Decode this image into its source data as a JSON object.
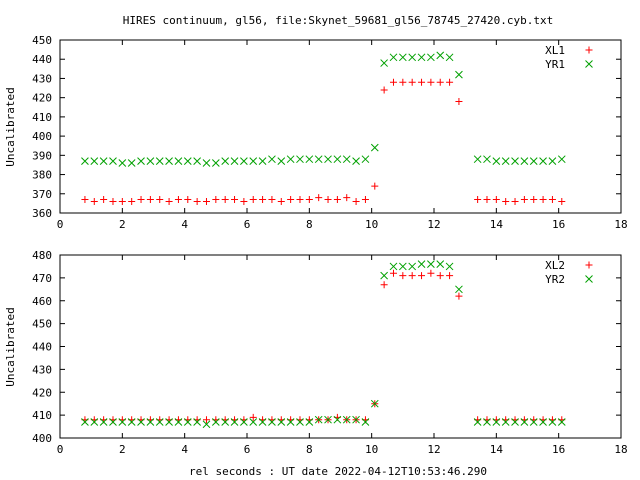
{
  "title": "HIRES continuum, gl56, file:Skynet_59681_gl56_78745_27420.cyb.txt",
  "xlabel": "rel seconds : UT date 2022-04-12T10:53:46.290",
  "colors": {
    "red": "#ff0000",
    "green": "#00a000",
    "frame": "#000000"
  },
  "chart_data": [
    {
      "type": "scatter",
      "ylabel": "Uncalibrated",
      "xlim": [
        0,
        18
      ],
      "ylim": [
        360,
        450
      ],
      "xticks": [
        0,
        2,
        4,
        6,
        8,
        10,
        12,
        14,
        16,
        18
      ],
      "yticks": [
        360,
        370,
        380,
        390,
        400,
        410,
        420,
        430,
        440,
        450
      ],
      "legend_position": "top-right",
      "grid": false,
      "x": [
        0.8,
        1.1,
        1.4,
        1.7,
        2.0,
        2.3,
        2.6,
        2.9,
        3.2,
        3.5,
        3.8,
        4.1,
        4.4,
        4.7,
        5.0,
        5.3,
        5.6,
        5.9,
        6.2,
        6.5,
        6.8,
        7.1,
        7.4,
        7.7,
        8.0,
        8.3,
        8.6,
        8.9,
        9.2,
        9.5,
        9.8,
        10.1,
        10.4,
        10.7,
        11.0,
        11.3,
        11.6,
        11.9,
        12.2,
        12.5,
        12.8,
        13.1,
        13.4,
        13.7,
        14.0,
        14.3,
        14.6,
        14.9,
        15.2,
        15.5,
        15.8,
        16.1
      ],
      "series": [
        {
          "name": "XL1",
          "marker": "plus",
          "color": "#ff0000",
          "values": [
            367,
            366,
            367,
            366,
            366,
            366,
            367,
            367,
            367,
            366,
            367,
            367,
            366,
            366,
            367,
            367,
            367,
            366,
            367,
            367,
            367,
            366,
            367,
            367,
            367,
            368,
            367,
            367,
            368,
            366,
            367,
            374,
            424,
            428,
            428,
            428,
            428,
            428,
            428,
            428,
            418,
            null,
            367,
            367,
            367,
            366,
            366,
            367,
            367,
            367,
            367,
            366
          ]
        },
        {
          "name": "YR1",
          "marker": "cross",
          "color": "#00a000",
          "values": [
            387,
            387,
            387,
            387,
            386,
            386,
            387,
            387,
            387,
            387,
            387,
            387,
            387,
            386,
            386,
            387,
            387,
            387,
            387,
            387,
            388,
            387,
            388,
            388,
            388,
            388,
            388,
            388,
            388,
            387,
            388,
            394,
            438,
            441,
            441,
            441,
            441,
            441,
            442,
            441,
            432,
            null,
            388,
            388,
            387,
            387,
            387,
            387,
            387,
            387,
            387,
            388
          ]
        }
      ]
    },
    {
      "type": "scatter",
      "ylabel": "Uncalibrated",
      "xlim": [
        0,
        18
      ],
      "ylim": [
        400,
        480
      ],
      "xticks": [
        0,
        2,
        4,
        6,
        8,
        10,
        12,
        14,
        16,
        18
      ],
      "yticks": [
        400,
        410,
        420,
        430,
        440,
        450,
        460,
        470,
        480
      ],
      "legend_position": "top-right",
      "grid": false,
      "x": [
        0.8,
        1.1,
        1.4,
        1.7,
        2.0,
        2.3,
        2.6,
        2.9,
        3.2,
        3.5,
        3.8,
        4.1,
        4.4,
        4.7,
        5.0,
        5.3,
        5.6,
        5.9,
        6.2,
        6.5,
        6.8,
        7.1,
        7.4,
        7.7,
        8.0,
        8.3,
        8.6,
        8.9,
        9.2,
        9.5,
        9.8,
        10.1,
        10.4,
        10.7,
        11.0,
        11.3,
        11.6,
        11.9,
        12.2,
        12.5,
        12.8,
        13.1,
        13.4,
        13.7,
        14.0,
        14.3,
        14.6,
        14.9,
        15.2,
        15.5,
        15.8,
        16.1
      ],
      "series": [
        {
          "name": "XL2",
          "marker": "plus",
          "color": "#ff0000",
          "values": [
            408,
            408,
            408,
            408,
            408,
            408,
            408,
            408,
            408,
            408,
            408,
            408,
            408,
            408,
            408,
            408,
            408,
            408,
            409,
            408,
            408,
            408,
            408,
            408,
            408,
            408,
            408,
            409,
            408,
            408,
            408,
            415,
            467,
            472,
            471,
            471,
            471,
            472,
            471,
            471,
            462,
            null,
            408,
            408,
            408,
            408,
            408,
            408,
            408,
            408,
            408,
            408
          ]
        },
        {
          "name": "YR2",
          "marker": "cross",
          "color": "#00a000",
          "values": [
            407,
            407,
            407,
            407,
            407,
            407,
            407,
            407,
            407,
            407,
            407,
            407,
            407,
            406,
            407,
            407,
            407,
            407,
            407,
            407,
            407,
            407,
            407,
            407,
            407,
            408,
            408,
            408,
            408,
            408,
            407,
            415,
            471,
            475,
            475,
            475,
            476,
            476,
            476,
            475,
            465,
            null,
            407,
            407,
            407,
            407,
            407,
            407,
            407,
            407,
            407,
            407
          ]
        }
      ]
    }
  ]
}
